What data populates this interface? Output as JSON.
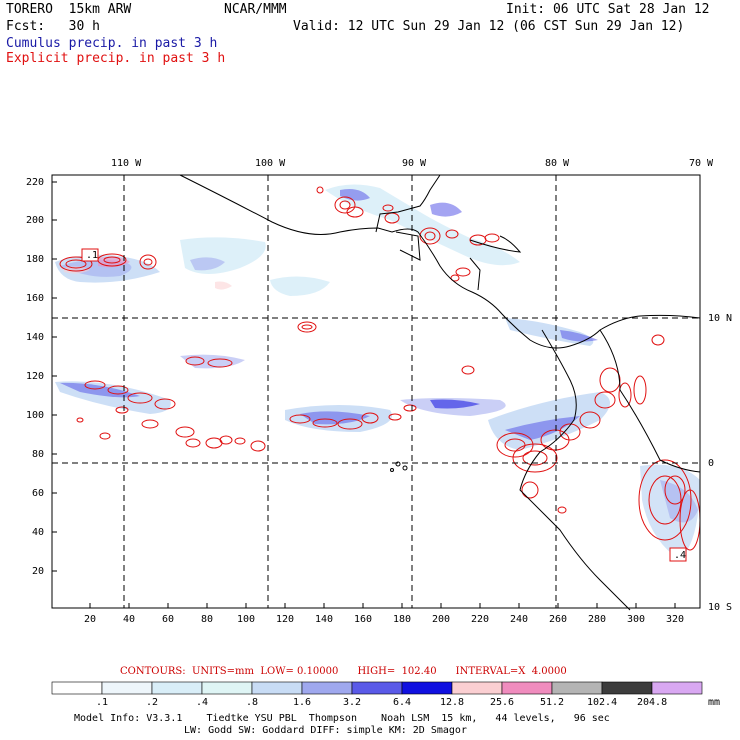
{
  "header": {
    "model": "TORERO  15km ARW",
    "org": "NCAR/MMM",
    "init": "Init: 06 UTC Sat 28 Jan 12",
    "fcst": "Fcst:   30 h",
    "valid": "Valid: 12 UTC Sun 29 Jan 12 (06 CST Sun 29 Jan 12)",
    "field1": "Cumulus precip. in past 3 h",
    "field2": "Explicit precip. in past 3 h",
    "field1_color": "#1a1aa6",
    "field2_color": "#e01010"
  },
  "map": {
    "lon_labels": [
      "110 W",
      "100 W",
      "90 W",
      "80 W",
      "70 W"
    ],
    "lat_labels": [
      "10 N",
      "0",
      "10 S"
    ],
    "y_ticks": [
      "220",
      "200",
      "180",
      "160",
      "140",
      "120",
      "100",
      "80",
      "60",
      "40",
      "20"
    ],
    "x_ticks": [
      "20",
      "40",
      "60",
      "80",
      "100",
      "120",
      "140",
      "160",
      "180",
      "200",
      "220",
      "240",
      "260",
      "280",
      "300",
      "320"
    ],
    "box_labels": [
      ".1",
      ".4"
    ]
  },
  "contours": {
    "text": "CONTOURS:  UNITS=mm  LOW= 0.10000      HIGH=  102.40      INTERVAL=X  4.0000",
    "color": "#cc0000"
  },
  "colorbar": {
    "unit": "mm",
    "labels": [
      ".1",
      ".2",
      ".4",
      ".8",
      "1.6",
      "3.2",
      "6.4",
      "12.8",
      "25.6",
      "51.2",
      "102.4",
      "204.8"
    ],
    "colors": [
      "#ffffff",
      "#eef6fb",
      "#d9eef8",
      "#dff5f5",
      "#c8dcf5",
      "#9fa8ee",
      "#5a5ae8",
      "#1010e0",
      "#fbcfd2",
      "#f08cbe",
      "#b4b4b4",
      "#3c3c3c",
      "#d9a8f2"
    ]
  },
  "footer": {
    "line1": "Model Info: V3.3.1    Tiedtke YSU PBL  Thompson    Noah LSM  15 km,   44 levels,   96 sec",
    "line2": "LW: Godd SW: Goddard DIFF: simple KM: 2D Smagor"
  }
}
